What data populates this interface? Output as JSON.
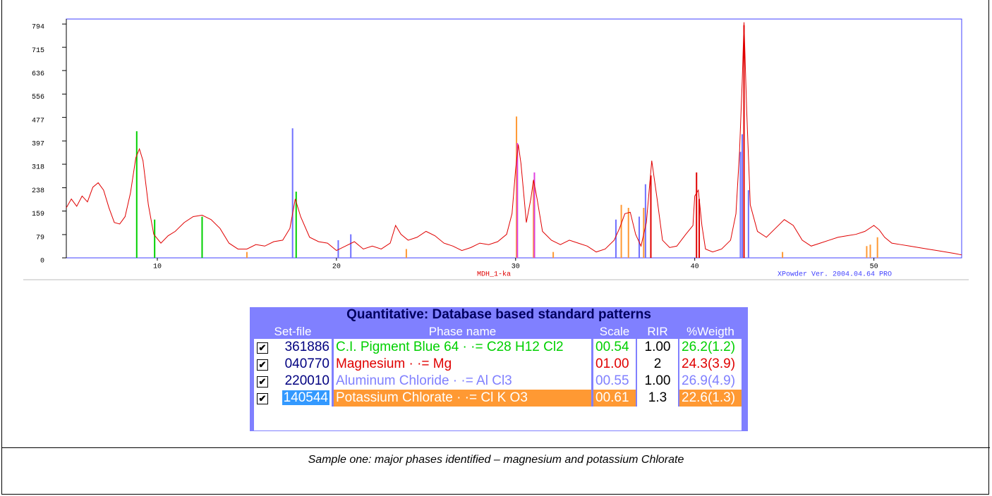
{
  "chart_data": {
    "type": "line",
    "xlim": [
      4.92,
      54.9
    ],
    "ylim": [
      0,
      811
    ],
    "xticks": [
      10,
      20,
      30,
      40,
      50
    ],
    "yticks": [
      0,
      79,
      159,
      238,
      318,
      397,
      477,
      556,
      636,
      715,
      794
    ],
    "annotations": [
      "MDH_1-ka",
      "XPowder Ver. 2004.04.64 PRO"
    ],
    "series": [
      {
        "color": "#e00000",
        "x": [
          4.92,
          5.2,
          5.5,
          5.8,
          6.1,
          6.4,
          6.7,
          7.0,
          7.3,
          7.6,
          7.9,
          8.2,
          8.5,
          8.8,
          9.0,
          9.2,
          9.5,
          9.8,
          10.2,
          10.6,
          11.0,
          11.5,
          12.0,
          12.5,
          13.0,
          13.5,
          14.0,
          14.5,
          15.0,
          15.5,
          16.0,
          16.5,
          17.0,
          17.4,
          17.7,
          18.0,
          18.5,
          19.0,
          19.5,
          20.0,
          20.5,
          21.0,
          21.5,
          22.0,
          22.5,
          23.0,
          23.3,
          23.6,
          24.0,
          24.5,
          25.0,
          25.5,
          26.0,
          26.5,
          27.0,
          27.5,
          28.0,
          28.5,
          29.0,
          29.5,
          29.8,
          30.0,
          30.15,
          30.3,
          30.6,
          30.85,
          31.0,
          31.2,
          31.5,
          32.0,
          32.5,
          33.0,
          33.5,
          34.0,
          34.5,
          35.0,
          35.5,
          35.8,
          36.1,
          36.4,
          36.7,
          37.0,
          37.3,
          37.6,
          37.9,
          38.2,
          38.6,
          39.0,
          39.5,
          39.9,
          40.0,
          40.2,
          40.4,
          40.6,
          41.0,
          41.5,
          42.0,
          42.3,
          42.5,
          42.65,
          42.75,
          42.9,
          43.1,
          43.5,
          44.0,
          44.5,
          45.0,
          45.5,
          46.0,
          46.5,
          47.0,
          47.5,
          48.0,
          48.5,
          49.0,
          49.5,
          50.0,
          50.3,
          50.6,
          51.0,
          51.5,
          52.0,
          52.5,
          53.0,
          53.5,
          54.0,
          54.5,
          54.9
        ],
        "values": [
          170,
          200,
          175,
          210,
          190,
          240,
          255,
          230,
          170,
          120,
          115,
          140,
          220,
          340,
          370,
          330,
          180,
          80,
          50,
          75,
          90,
          120,
          140,
          145,
          130,
          100,
          50,
          30,
          30,
          45,
          40,
          55,
          60,
          100,
          200,
          140,
          70,
          55,
          50,
          25,
          40,
          55,
          30,
          40,
          30,
          50,
          110,
          80,
          60,
          70,
          90,
          75,
          50,
          40,
          25,
          35,
          50,
          45,
          55,
          80,
          150,
          300,
          385,
          320,
          120,
          200,
          265,
          200,
          90,
          60,
          45,
          60,
          50,
          40,
          20,
          30,
          60,
          100,
          150,
          155,
          80,
          40,
          120,
          330,
          200,
          60,
          35,
          40,
          80,
          110,
          210,
          230,
          110,
          30,
          20,
          30,
          60,
          150,
          360,
          600,
          800,
          500,
          180,
          90,
          70,
          100,
          130,
          110,
          60,
          40,
          50,
          60,
          70,
          75,
          80,
          90,
          110,
          95,
          70,
          50,
          45,
          40,
          35,
          30,
          25,
          20,
          15,
          10
        ]
      }
    ],
    "sticks": [
      {
        "color": "#00d000",
        "x": [
          8.85,
          9.85,
          12.5,
          17.75,
          31.05
        ],
        "values": [
          430,
          130,
          140,
          225,
          180
        ]
      },
      {
        "color": "#e00000",
        "x": [
          37.55,
          40.1,
          40.25,
          42.75
        ],
        "values": [
          280,
          290,
          200,
          790
        ]
      },
      {
        "color": "#7070ff",
        "x": [
          17.55,
          20.1,
          20.8,
          35.6,
          36.9,
          37.25,
          42.55,
          42.65,
          43.0
        ],
        "values": [
          440,
          60,
          80,
          130,
          140,
          250,
          360,
          420,
          230
        ]
      },
      {
        "color": "#ff9933",
        "x": [
          15.0,
          23.9,
          30.05,
          31.0,
          32.1,
          35.9,
          36.3,
          37.15,
          44.9,
          49.6,
          49.8,
          50.2
        ],
        "values": [
          20,
          30,
          480,
          260,
          20,
          180,
          170,
          170,
          20,
          40,
          45,
          70
        ]
      },
      {
        "color": "#e040e0",
        "x": [
          30.1,
          31.05
        ],
        "values": [
          390,
          290
        ]
      }
    ]
  },
  "table": {
    "title": "Quantitative: Database based standard patterns",
    "headers": [
      "Set-file",
      "Phase name",
      "Scale",
      "RIR",
      "%Weigth"
    ],
    "row_colors": [
      "#00d000",
      "#e00000",
      "#8080ff",
      "#ff9933"
    ],
    "rows": [
      [
        "361886",
        "C.I. Pigment Blue 64 · ·= C28 H12 Cl2",
        "00.54",
        "1.00",
        "26.2(1.2)"
      ],
      [
        "040770",
        "Magnesium · ·= Mg",
        "01.00",
        "2",
        "24.3(3.9)"
      ],
      [
        "220010",
        "Aluminum Chloride · ·= Al Cl3",
        "00.55",
        "1.00",
        "26.9(4.9)"
      ],
      [
        "140544",
        "Potassium Chlorate · ·= Cl K O3",
        "00.61",
        "1.3",
        "22.6(1.3)"
      ]
    ]
  },
  "caption": "Sample one: major phases identified – magnesium and potassium Chlorate"
}
